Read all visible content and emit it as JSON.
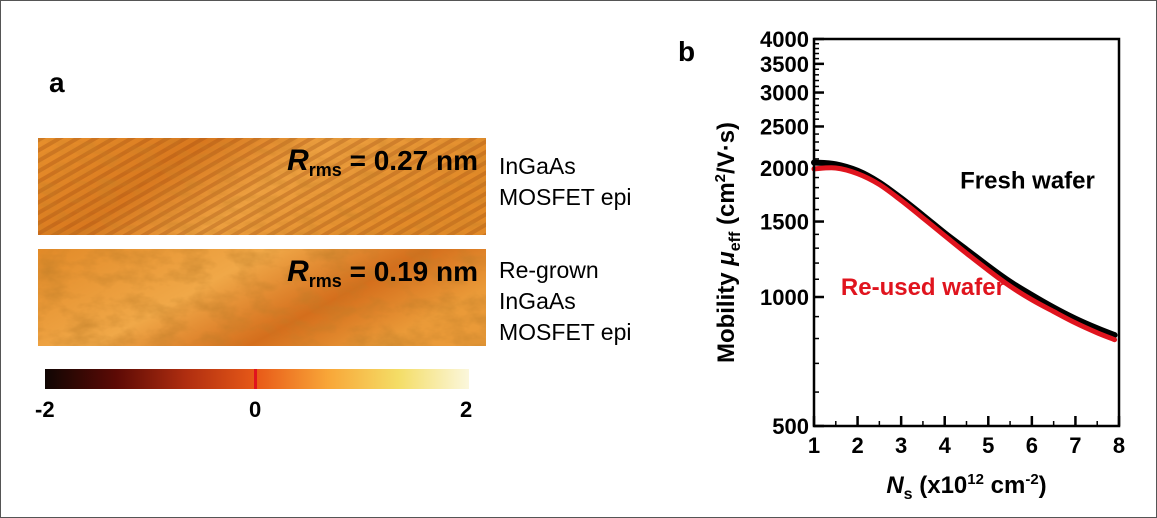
{
  "panel_a": {
    "label": "a",
    "images": [
      {
        "rms_symbol": "R",
        "rms_subscript": "rms",
        "rms_value": " = 0.27 nm",
        "caption": [
          "InGaAs",
          "MOSFET epi"
        ]
      },
      {
        "rms_symbol": "R",
        "rms_subscript": "rms",
        "rms_value": " = 0.19 nm",
        "caption": [
          "Re-grown",
          "InGaAs",
          "MOSFET epi"
        ]
      }
    ],
    "colorbar": {
      "ticks": [
        "-2",
        "0",
        "2"
      ],
      "colors": [
        "#100604",
        "#5c0a05",
        "#b02e10",
        "#e85a18",
        "#f8a638",
        "#f4dd66",
        "#fbf7dc"
      ],
      "zero_marker_color": "#e0141e"
    }
  },
  "chart_data": {
    "type": "line",
    "panel_label": "b",
    "xlabel": {
      "symbol": "N",
      "sub": "s",
      "rest": " (x10",
      "sup": "12",
      "unit": " cm",
      "unit_sup": "-2",
      "close": ")"
    },
    "ylabel": {
      "main": "Mobility ",
      "symbol": "μ",
      "sub": "eff",
      "unit": " (cm",
      "unit_sup": "2",
      "close": "/V·s)"
    },
    "xlim": [
      1,
      8
    ],
    "ylim": [
      500,
      4000
    ],
    "yscale": "log",
    "xticks": [
      1,
      2,
      3,
      4,
      5,
      6,
      7,
      8
    ],
    "yticks": [
      500,
      1000,
      1500,
      2000,
      2500,
      3000,
      3500,
      4000
    ],
    "grid": false,
    "series": [
      {
        "name": "Fresh wafer",
        "color": "#000000",
        "x": [
          1.0,
          1.5,
          2.0,
          2.5,
          3.0,
          3.5,
          4.0,
          4.5,
          5.0,
          5.5,
          6.0,
          6.5,
          7.0,
          7.5,
          7.9
        ],
        "y": [
          2060,
          2040,
          1970,
          1850,
          1700,
          1550,
          1410,
          1290,
          1180,
          1085,
          1010,
          945,
          890,
          845,
          815
        ]
      },
      {
        "name": "Re-used wafer",
        "color": "#e0141e",
        "x": [
          1.0,
          1.5,
          2.0,
          2.5,
          3.0,
          3.5,
          4.0,
          4.5,
          5.0,
          5.5,
          6.0,
          6.5,
          7.0,
          7.5,
          7.9
        ],
        "y": [
          1990,
          2000,
          1940,
          1830,
          1680,
          1530,
          1390,
          1265,
          1155,
          1060,
          985,
          925,
          870,
          825,
          795
        ]
      }
    ],
    "annotations": [
      {
        "text": "Fresh wafer",
        "color": "#000000",
        "x": 5.9,
        "y": 1880
      },
      {
        "text": "Re-used wafer",
        "color": "#e0141e",
        "x": 3.5,
        "y": 1060
      }
    ]
  }
}
